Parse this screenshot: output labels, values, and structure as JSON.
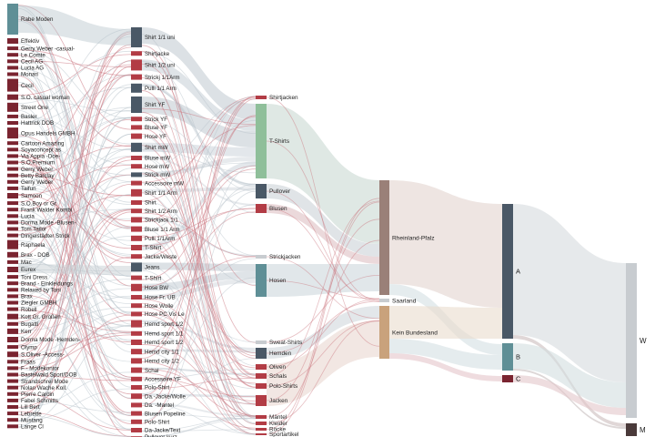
{
  "colors": {
    "brand": "#7a2430",
    "product": "#b23c45",
    "teal": "#5f8f96",
    "slate": "#4a5866",
    "green": "#8fbf9a",
    "mauve": "#9a8078",
    "sand": "#c9a27c",
    "grey": "#c8ccd0",
    "dark": "#4a3a3a"
  },
  "labels": {
    "brands": [
      "Rabe Moden",
      "Effektiv",
      "Gerry Weber -casual-",
      "Le Comte",
      "Cecil AG",
      "Lucia AG",
      "Monari",
      "Cecil",
      "S.O. casual woman",
      "Street One",
      "Basler",
      "Hattrick DOB",
      "Opus Handels GMBH",
      "Cartoon Amazing",
      "Soyaconcept as",
      "Via Appia -Doe-",
      "S.O.Premium",
      "Gerry Weber",
      "Betty Barclay",
      "Gerry Weber",
      "Taifun",
      "Samoon",
      "S.O.Boy or Gr.",
      "Frank Walder Kombi",
      "Lucia",
      "Dorma Mode -Blusen-",
      "Tom Tailor",
      "Dingelstädter Strick",
      "Raphaela",
      "Brax - DOB",
      "Mac",
      "Eurex",
      "Toni Dress",
      "Brand - Einkleidungs",
      "Relaxed by Toni",
      "Brax",
      "Ziegler GMBH",
      "Robell",
      "Kott Gr. Größen",
      "Bugatti",
      "Kerr",
      "Dorma Mode -Hemden-",
      "Olymp",
      "S.Oliver -Access-",
      "Fraas",
      "F - Modekontor",
      "Bastelwald Sport/DOB",
      "Strandschrei Mode",
      "Nolan Wache Koll.",
      "Pierre Cardin",
      "Fabel Schmitts",
      "Lill Bert",
      "Lebrette",
      "Mustang",
      "Lange Cl"
    ],
    "products": [
      "Shirt 1/1 uni",
      "Shirtjacke",
      "Shirt 1/2 uni",
      "Strickj 1/1Arm",
      "Pulli 1/1 Arm",
      "Shirt YF",
      "Strick YF",
      "Bluse YF",
      "Hose YF",
      "Shirt mW",
      "Bluse mW",
      "Hose mW",
      "Strick mW",
      "Accessoire mW",
      "Shirt 1/1 Arm",
      "Shirt",
      "Shirt 1/2 Arm",
      "Strickjack 1/1",
      "Bluse 1/1 Arm",
      "Pulli 1/1Arm",
      "T-Shirt",
      "Jacke/Weste",
      "Jeans",
      "T-Shirt",
      "Hose BW",
      "Hose Fr. UB",
      "Hose Wolle",
      "Hose PC Vis Le",
      "Hemd sport 1/2",
      "Hemd sport 1/1",
      "Hemd sport 1/2",
      "Hemd city 1/1",
      "Hemd city 1/2",
      "Schal",
      "Accessoire YF",
      "Polo-Shirt",
      "Da.-Jacke/Wolle",
      "Da. -Mantel",
      "Blusen Popeline",
      "Polo-Shirt",
      "Da-Jacke/Text",
      "Pullover kurz"
    ],
    "categories": [
      "Shirtjacken",
      "T-Shirts",
      "Pullover",
      "Blusen",
      "Strickjacken",
      "Hosen",
      "Sweat-Shirts",
      "Hemden",
      "Oliven",
      "Schals",
      "Polo-Shirts",
      "Jacken",
      "Mäntel",
      "Kleider",
      "Röcke",
      "Sportartikel"
    ],
    "regions": [
      "Rheinland-Pfalz",
      "Saarland",
      "Kein Bundesland"
    ],
    "segments": [
      "A",
      "B",
      "C"
    ],
    "genders": [
      "W",
      "M"
    ]
  }
}
